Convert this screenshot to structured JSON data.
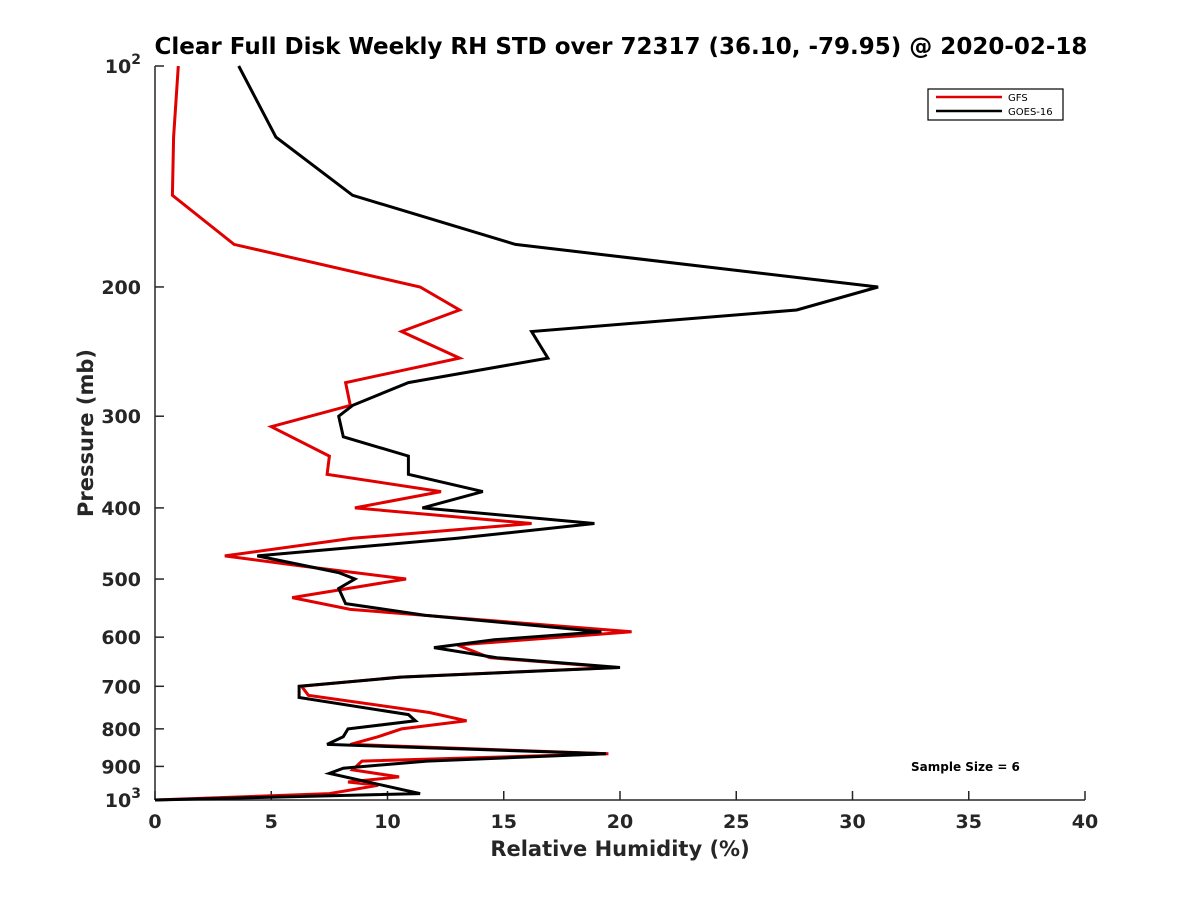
{
  "chart_data": {
    "type": "line",
    "title": "Clear Full Disk Weekly RH STD over 72317 (36.10, -79.95) @ 2020-02-18",
    "xlabel": "Relative Humidity (%)",
    "ylabel": "Pressure (mb)",
    "xlim": [
      0,
      40
    ],
    "ylim": [
      100,
      1000
    ],
    "y_scale": "log",
    "y_reversed": true,
    "x_ticks": [
      "0",
      "5",
      "10",
      "15",
      "20",
      "25",
      "30",
      "35",
      "40"
    ],
    "y_ticks": [
      {
        "value": 100,
        "label": "10",
        "sup": "2"
      },
      {
        "value": 200,
        "label": "200",
        "sup": ""
      },
      {
        "value": 300,
        "label": "300",
        "sup": ""
      },
      {
        "value": 400,
        "label": "400",
        "sup": ""
      },
      {
        "value": 500,
        "label": "500",
        "sup": ""
      },
      {
        "value": 600,
        "label": "600",
        "sup": ""
      },
      {
        "value": 700,
        "label": "700",
        "sup": ""
      },
      {
        "value": 800,
        "label": "800",
        "sup": ""
      },
      {
        "value": 900,
        "label": "900",
        "sup": ""
      },
      {
        "value": 1000,
        "label": "10",
        "sup": "3"
      }
    ],
    "grid": false,
    "legend_position": "top-right",
    "annotation": "Sample Size = 6",
    "series": [
      {
        "name": "GFS",
        "color": "#e00000",
        "points": [
          [
            1.0,
            100
          ],
          [
            0.8,
            125
          ],
          [
            0.75,
            150
          ],
          [
            3.4,
            175
          ],
          [
            11.4,
            200
          ],
          [
            13.1,
            215
          ],
          [
            10.6,
            230
          ],
          [
            13.1,
            250
          ],
          [
            8.2,
            270
          ],
          [
            8.4,
            290
          ],
          [
            5.0,
            310
          ],
          [
            7.5,
            340
          ],
          [
            7.4,
            360
          ],
          [
            12.3,
            380
          ],
          [
            8.6,
            400
          ],
          [
            16.2,
            420
          ],
          [
            8.5,
            440
          ],
          [
            3.0,
            465
          ],
          [
            6.3,
            480
          ],
          [
            10.8,
            500
          ],
          [
            5.9,
            530
          ],
          [
            8.4,
            550
          ],
          [
            20.5,
            590
          ],
          [
            13.0,
            615
          ],
          [
            14.4,
            640
          ],
          [
            19.8,
            660
          ],
          [
            10.5,
            680
          ],
          [
            6.3,
            700
          ],
          [
            6.6,
            720
          ],
          [
            11.8,
            760
          ],
          [
            13.4,
            780
          ],
          [
            10.6,
            800
          ],
          [
            9.6,
            820
          ],
          [
            8.4,
            840
          ],
          [
            19.5,
            865
          ],
          [
            8.9,
            885
          ],
          [
            8.5,
            910
          ],
          [
            10.5,
            930
          ],
          [
            8.3,
            945
          ],
          [
            9.6,
            955
          ],
          [
            7.5,
            980
          ],
          [
            0.0,
            1000
          ]
        ]
      },
      {
        "name": "GOES-16",
        "color": "#000000",
        "points": [
          [
            3.6,
            100
          ],
          [
            5.2,
            125
          ],
          [
            8.5,
            150
          ],
          [
            15.5,
            175
          ],
          [
            31.1,
            200
          ],
          [
            27.6,
            215
          ],
          [
            16.2,
            230
          ],
          [
            16.9,
            250
          ],
          [
            10.9,
            270
          ],
          [
            8.5,
            290
          ],
          [
            7.9,
            300
          ],
          [
            8.1,
            320
          ],
          [
            10.9,
            340
          ],
          [
            10.9,
            360
          ],
          [
            14.1,
            380
          ],
          [
            11.5,
            400
          ],
          [
            18.9,
            420
          ],
          [
            13.0,
            440
          ],
          [
            4.4,
            465
          ],
          [
            7.9,
            490
          ],
          [
            8.6,
            500
          ],
          [
            7.9,
            515
          ],
          [
            8.2,
            540
          ],
          [
            11.6,
            560
          ],
          [
            19.2,
            590
          ],
          [
            14.6,
            605
          ],
          [
            12.0,
            620
          ],
          [
            14.7,
            640
          ],
          [
            20.0,
            660
          ],
          [
            10.6,
            680
          ],
          [
            6.2,
            700
          ],
          [
            6.2,
            725
          ],
          [
            10.9,
            765
          ],
          [
            11.2,
            780
          ],
          [
            8.3,
            800
          ],
          [
            8.1,
            820
          ],
          [
            7.4,
            840
          ],
          [
            19.4,
            865
          ],
          [
            11.7,
            885
          ],
          [
            8.1,
            905
          ],
          [
            7.5,
            920
          ],
          [
            11.4,
            980
          ],
          [
            0.0,
            1000
          ]
        ]
      }
    ]
  }
}
